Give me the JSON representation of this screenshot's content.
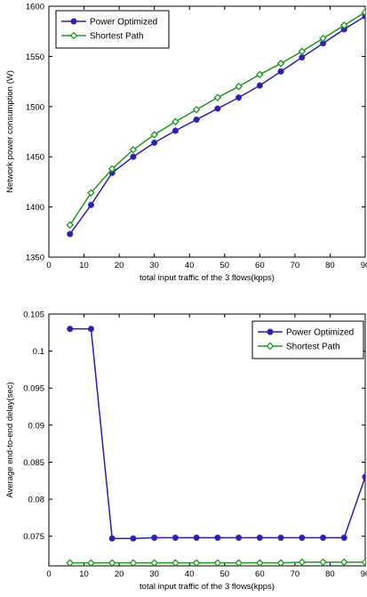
{
  "chart_data": [
    {
      "type": "line",
      "xlabel": "total input traffic of the 3 flows(kpps)",
      "ylabel": "Network power consumption (W)",
      "xlim": [
        0,
        90
      ],
      "ylim": [
        1350,
        1600
      ],
      "xticks": [
        0,
        10,
        20,
        30,
        40,
        50,
        60,
        70,
        80,
        90
      ],
      "yticks": [
        1350,
        1400,
        1450,
        1500,
        1550,
        1600
      ],
      "ytick_labels": [
        "1350",
        "1400",
        "1450",
        "1500",
        "1550",
        "1600"
      ],
      "xtick_labels": [
        "0",
        "10",
        "20",
        "30",
        "40",
        "50",
        "60",
        "70",
        "80",
        "90"
      ],
      "grid": false,
      "legend_position": "top-left",
      "x": [
        6,
        12,
        18,
        24,
        30,
        36,
        42,
        48,
        54,
        60,
        66,
        72,
        78,
        84,
        90
      ],
      "series": [
        {
          "name": "Power Optimized",
          "color": "#2a1fb0",
          "marker": "star",
          "values": [
            1373,
            1402,
            1434,
            1450,
            1464,
            1476,
            1487,
            1498,
            1509,
            1521,
            1535,
            1549,
            1563,
            1577,
            1590
          ]
        },
        {
          "name": "Shortest Path",
          "color": "#1e9a1e",
          "marker": "diamond",
          "values": [
            1382,
            1414,
            1438,
            1457,
            1472,
            1485,
            1497,
            1509,
            1520,
            1532,
            1543,
            1555,
            1568,
            1581,
            1594
          ]
        }
      ]
    },
    {
      "type": "line",
      "xlabel": "total input traffic of the 3 flows(kpps)",
      "ylabel": "Average end-to-end delay(sec)",
      "xlim": [
        0,
        90
      ],
      "ylim": [
        0.071,
        0.105
      ],
      "xticks": [
        0,
        10,
        20,
        30,
        40,
        50,
        60,
        70,
        80,
        90
      ],
      "yticks": [
        0.075,
        0.08,
        0.085,
        0.09,
        0.095,
        0.1,
        0.105
      ],
      "ytick_labels": [
        "0.075",
        "0.08",
        "0.085",
        "0.09",
        "0.095",
        "0.1",
        "0.105"
      ],
      "xtick_labels": [
        "0",
        "10",
        "20",
        "30",
        "40",
        "50",
        "60",
        "70",
        "80",
        "90"
      ],
      "grid": false,
      "legend_position": "top-right",
      "x": [
        6,
        12,
        18,
        24,
        30,
        36,
        42,
        48,
        54,
        60,
        66,
        72,
        78,
        84,
        90
      ],
      "series": [
        {
          "name": "Power Optimized",
          "color": "#2a1fb0",
          "marker": "star",
          "values": [
            0.103,
            0.103,
            0.0747,
            0.0747,
            0.0748,
            0.0748,
            0.0748,
            0.0748,
            0.0748,
            0.0748,
            0.0748,
            0.0748,
            0.0748,
            0.0748,
            0.083
          ]
        },
        {
          "name": "Shortest Path",
          "color": "#1e9a1e",
          "marker": "diamond",
          "values": [
            0.0714,
            0.0714,
            0.0714,
            0.0714,
            0.0714,
            0.0714,
            0.0714,
            0.0714,
            0.0714,
            0.0714,
            0.0714,
            0.0715,
            0.0715,
            0.0715,
            0.0715
          ]
        }
      ]
    }
  ]
}
